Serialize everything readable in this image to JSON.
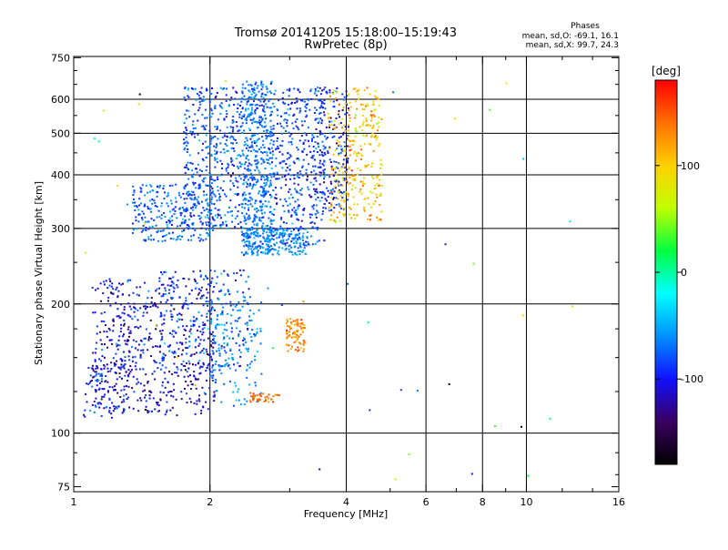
{
  "header": {
    "title": "Tromsø 20141205 15:18:00–15:19:43",
    "subtitle": "RwPretec (8p)",
    "stats_title": "Phases",
    "stats_o": "mean, sd,O: -69.1, 16.1",
    "stats_x": "mean, sd,X: 99.7, 24.3"
  },
  "chart_data": {
    "type": "scatter",
    "xlabel": "Frequency [MHz]",
    "ylabel": "Stationary phase Virtual Height [km]",
    "xscale": "log",
    "yscale": "log",
    "xlim": [
      1,
      16
    ],
    "ylim": [
      73,
      755
    ],
    "grid": true,
    "x_ticks": [
      1,
      2,
      4,
      6,
      8,
      10,
      16
    ],
    "x_minor_ticks": [
      3,
      5,
      7,
      9,
      12,
      14
    ],
    "y_ticks": [
      75,
      100,
      200,
      300,
      400,
      500,
      600,
      750
    ],
    "y_minor_ticks": [
      80,
      90,
      125,
      150,
      175,
      250,
      350,
      450,
      550,
      650,
      700
    ],
    "grid_x": [
      2,
      4,
      6,
      8,
      10
    ],
    "grid_y": [
      100,
      200,
      300,
      400,
      500,
      600
    ],
    "colorbar": {
      "label": "[deg]",
      "range": [
        -180,
        180
      ],
      "ticks": [
        100,
        0,
        -100
      ],
      "colors": [
        "#000000",
        "#3a0060",
        "#1010ff",
        "#0090ff",
        "#00ffff",
        "#00ff40",
        "#c0ff00",
        "#ffd000",
        "#ff7000",
        "#ff0000"
      ]
    },
    "point_clusters": [
      {
        "name": "o-lower-trace",
        "x_range": [
          1.1,
          2.05
        ],
        "y_range": [
          110,
          230
        ],
        "n": 620,
        "phase_mean": -110,
        "phase_sd": 22
      },
      {
        "name": "o-lower-trace-tail",
        "x_range": [
          1.05,
          1.3
        ],
        "y_range": [
          108,
          145
        ],
        "n": 60,
        "phase_mean": -90,
        "phase_sd": 20
      },
      {
        "name": "o-mid-lower",
        "x_range": [
          1.55,
          2.45
        ],
        "y_range": [
          140,
          240
        ],
        "n": 220,
        "phase_mean": -85,
        "phase_sd": 25
      },
      {
        "name": "o-lower-upper-edge",
        "x_range": [
          2.0,
          2.6
        ],
        "y_range": [
          115,
          215
        ],
        "n": 140,
        "phase_mean": -60,
        "phase_sd": 15
      },
      {
        "name": "o-upper-trace",
        "x_range": [
          1.35,
          2.05
        ],
        "y_range": [
          280,
          380
        ],
        "n": 260,
        "phase_mean": -75,
        "phase_sd": 18
      },
      {
        "name": "o-upper-main",
        "x_range": [
          1.75,
          2.35
        ],
        "y_range": [
          300,
          640
        ],
        "n": 420,
        "phase_mean": -80,
        "phase_sd": 20
      },
      {
        "name": "o-column-2.5",
        "x_range": [
          2.35,
          2.75
        ],
        "y_range": [
          260,
          660
        ],
        "n": 560,
        "phase_mean": -68,
        "phase_sd": 16
      },
      {
        "name": "o-column-3",
        "x_range": [
          2.75,
          3.6
        ],
        "y_range": [
          270,
          640
        ],
        "n": 420,
        "phase_mean": -85,
        "phase_sd": 22
      },
      {
        "name": "o-bottom-band",
        "x_range": [
          2.4,
          3.3
        ],
        "y_range": [
          260,
          300
        ],
        "n": 160,
        "phase_mean": -60,
        "phase_sd": 12
      },
      {
        "name": "o-column-3.8",
        "x_range": [
          3.5,
          4.05
        ],
        "y_range": [
          330,
          640
        ],
        "n": 180,
        "phase_mean": -95,
        "phase_sd": 22
      },
      {
        "name": "x-trace",
        "x_range": [
          3.65,
          4.8
        ],
        "y_range": [
          310,
          640
        ],
        "n": 300,
        "phase_mean": 105,
        "phase_sd": 25
      },
      {
        "name": "x-lower-blob",
        "x_range": [
          2.95,
          3.25
        ],
        "y_range": [
          155,
          185
        ],
        "n": 90,
        "phase_mean": 130,
        "phase_sd": 15
      },
      {
        "name": "x-lower-blob-2",
        "x_range": [
          2.45,
          2.85
        ],
        "y_range": [
          118,
          124
        ],
        "n": 40,
        "phase_mean": 140,
        "phase_sd": 10
      },
      {
        "name": "sparse-scatter",
        "x_range": [
          1.0,
          13.0
        ],
        "y_range": [
          75,
          700
        ],
        "n": 45,
        "phase_mean": 0,
        "phase_sd": 100
      }
    ]
  }
}
